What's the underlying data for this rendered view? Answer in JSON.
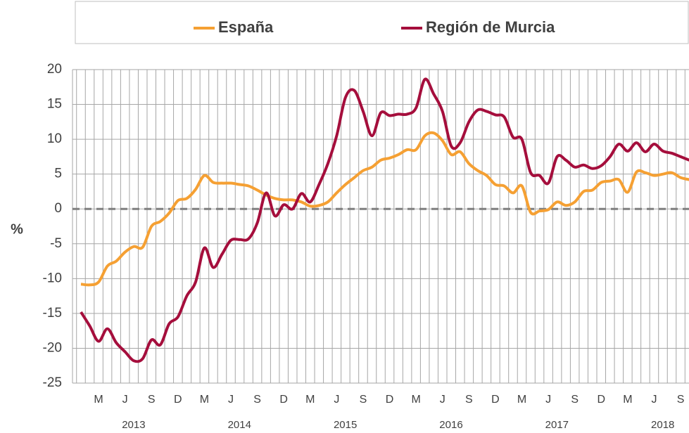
{
  "chart_data": {
    "type": "line",
    "y_label": "%",
    "categories": [
      null,
      null,
      "M",
      null,
      null,
      "J",
      null,
      null,
      "S",
      null,
      null,
      "D",
      null,
      null,
      "M",
      null,
      null,
      "J",
      null,
      null,
      "S",
      null,
      null,
      "D",
      null,
      null,
      "M",
      null,
      null,
      "J",
      null,
      null,
      "S",
      null,
      null,
      "D",
      null,
      null,
      "M",
      null,
      null,
      "J",
      null,
      null,
      "S",
      null,
      null,
      "D",
      null,
      null,
      "M",
      null,
      null,
      "J",
      null,
      null,
      "S",
      null,
      null,
      "D",
      null,
      null,
      "M",
      null,
      null,
      "J",
      null,
      null,
      "S",
      null
    ],
    "years": [
      "2013",
      "2014",
      "2015",
      "2016",
      "2017",
      "2018"
    ],
    "series": [
      {
        "name": "España",
        "color": "#f5a033",
        "values": [
          -10.8,
          -10.9,
          -10.5,
          -8.2,
          -7.5,
          -6.2,
          -5.4,
          -5.5,
          -2.5,
          -1.8,
          -0.6,
          1.2,
          1.5,
          2.8,
          4.8,
          3.8,
          3.7,
          3.7,
          3.5,
          3.3,
          2.7,
          2.0,
          1.5,
          1.3,
          1.3,
          1.0,
          0.4,
          0.5,
          1.0,
          2.3,
          3.5,
          4.5,
          5.5,
          6.0,
          7.0,
          7.3,
          7.8,
          8.5,
          8.5,
          10.5,
          10.9,
          9.8,
          7.8,
          8.2,
          6.5,
          5.5,
          4.8,
          3.5,
          3.3,
          2.3,
          3.3,
          -0.5,
          -0.3,
          -0.1,
          1.0,
          0.5,
          1.0,
          2.5,
          2.7,
          3.8,
          4.0,
          4.2,
          2.4,
          5.3,
          5.2,
          4.8,
          5.0,
          5.2,
          4.5,
          4.2
        ]
      },
      {
        "name": "Región de Murcia",
        "color": "#a50e3c",
        "values": [
          -14.8,
          -16.8,
          -19.0,
          -17.2,
          -19.2,
          -20.5,
          -21.8,
          -21.5,
          -18.8,
          -19.5,
          -16.5,
          -15.5,
          -12.5,
          -10.5,
          -5.6,
          -8.4,
          -6.5,
          -4.5,
          -4.4,
          -4.3,
          -2.0,
          2.3,
          -1.0,
          0.6,
          0.0,
          2.2,
          1.0,
          3.5,
          6.5,
          10.5,
          16.0,
          17.0,
          14.0,
          10.5,
          13.8,
          13.4,
          13.6,
          13.6,
          14.5,
          18.6,
          16.5,
          14.0,
          9.0,
          9.5,
          12.5,
          14.2,
          14.0,
          13.5,
          13.2,
          10.3,
          10.0,
          5.2,
          4.8,
          3.7,
          7.5,
          7.0,
          6.0,
          6.3,
          5.8,
          6.2,
          7.5,
          9.3,
          8.3,
          9.5,
          8.2,
          9.3,
          8.3,
          8.0,
          7.5,
          7.0
        ]
      }
    ],
    "ylim": [
      -25,
      20
    ],
    "yticks": [
      -25,
      -20,
      -15,
      -10,
      -5,
      0,
      5,
      10,
      15,
      20
    ],
    "grid": true,
    "zero_line": true,
    "legend": "top"
  }
}
